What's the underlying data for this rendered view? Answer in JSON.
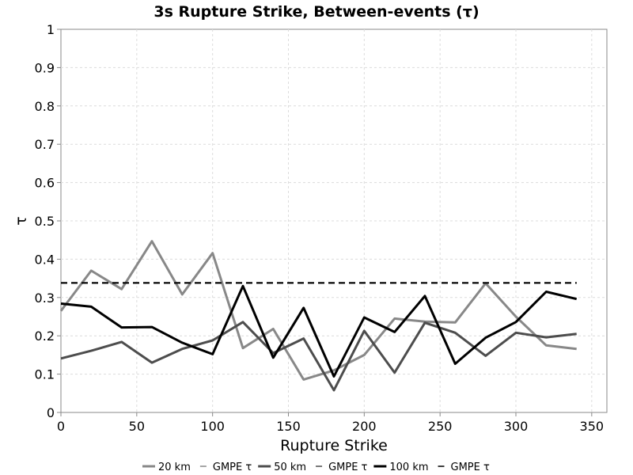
{
  "chart_data": {
    "type": "line",
    "title": "3s Rupture Strike, Between-events (τ)",
    "xlabel": "Rupture Strike",
    "ylabel": "τ",
    "xlim": [
      0,
      360
    ],
    "ylim": [
      0,
      1
    ],
    "xticks": [
      0,
      50,
      100,
      150,
      200,
      250,
      300,
      350
    ],
    "yticks": [
      0,
      0.1,
      0.2,
      0.3,
      0.4,
      0.5,
      0.6,
      0.7,
      0.8,
      0.9,
      1
    ],
    "grid": true,
    "legend_position": "bottom",
    "x": [
      0,
      20,
      40,
      60,
      80,
      100,
      120,
      140,
      160,
      180,
      200,
      220,
      240,
      260,
      280,
      300,
      320,
      340
    ],
    "series": [
      {
        "name": "20 km",
        "color": "#888888",
        "style": "solid",
        "values": [
          0.265,
          0.37,
          0.322,
          0.447,
          0.308,
          0.416,
          0.168,
          0.218,
          0.086,
          0.11,
          0.15,
          0.245,
          0.237,
          0.235,
          0.337,
          0.25,
          0.175,
          0.166
        ]
      },
      {
        "name": "GMPE τ",
        "color": "#888888",
        "style": "dashed",
        "values": [
          0.338,
          0.338,
          0.338,
          0.338,
          0.338,
          0.338,
          0.338,
          0.338,
          0.338,
          0.338,
          0.338,
          0.338,
          0.338,
          0.338,
          0.338,
          0.338,
          0.338,
          0.338
        ]
      },
      {
        "name": "50 km",
        "color": "#4d4d4d",
        "style": "solid",
        "values": [
          0.141,
          0.161,
          0.184,
          0.13,
          0.166,
          0.188,
          0.236,
          0.155,
          0.193,
          0.058,
          0.213,
          0.104,
          0.234,
          0.208,
          0.148,
          0.208,
          0.196,
          0.205
        ]
      },
      {
        "name": "GMPE τ",
        "color": "#4d4d4d",
        "style": "dashed",
        "values": [
          0.338,
          0.338,
          0.338,
          0.338,
          0.338,
          0.338,
          0.338,
          0.338,
          0.338,
          0.338,
          0.338,
          0.338,
          0.338,
          0.338,
          0.338,
          0.338,
          0.338,
          0.338
        ]
      },
      {
        "name": "100 km",
        "color": "#000000",
        "style": "solid",
        "values": [
          0.284,
          0.276,
          0.222,
          0.223,
          0.182,
          0.152,
          0.33,
          0.143,
          0.273,
          0.094,
          0.248,
          0.21,
          0.304,
          0.127,
          0.195,
          0.236,
          0.315,
          0.296
        ]
      },
      {
        "name": "GMPE τ",
        "color": "#000000",
        "style": "dashed",
        "values": [
          0.338,
          0.338,
          0.338,
          0.338,
          0.338,
          0.338,
          0.338,
          0.338,
          0.338,
          0.338,
          0.338,
          0.338,
          0.338,
          0.338,
          0.338,
          0.338,
          0.338,
          0.338
        ]
      }
    ]
  }
}
